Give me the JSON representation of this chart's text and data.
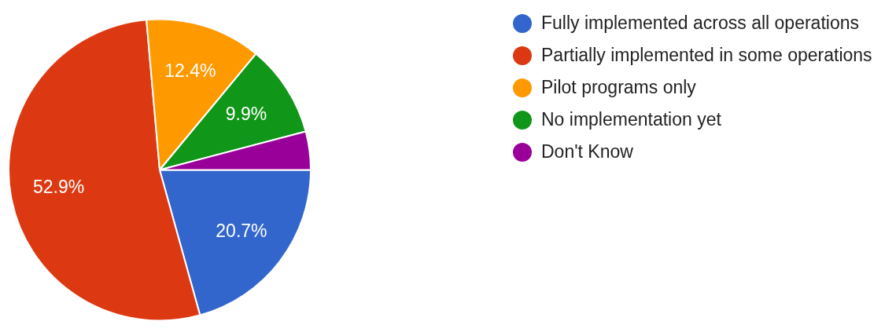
{
  "chart_data": {
    "type": "pie",
    "categories": [
      "Fully implemented across all operations",
      "Partially implemented in some operations",
      "Pilot programs only",
      "No implementation yet",
      "Don't Know"
    ],
    "values": [
      20.7,
      52.9,
      12.4,
      9.9,
      4.1
    ],
    "colors": [
      "#3366cc",
      "#dc3912",
      "#ff9900",
      "#109618",
      "#990099"
    ],
    "value_labels": [
      "20.7%",
      "52.9%",
      "12.4%",
      "9.9%",
      null
    ],
    "legend": "right"
  }
}
